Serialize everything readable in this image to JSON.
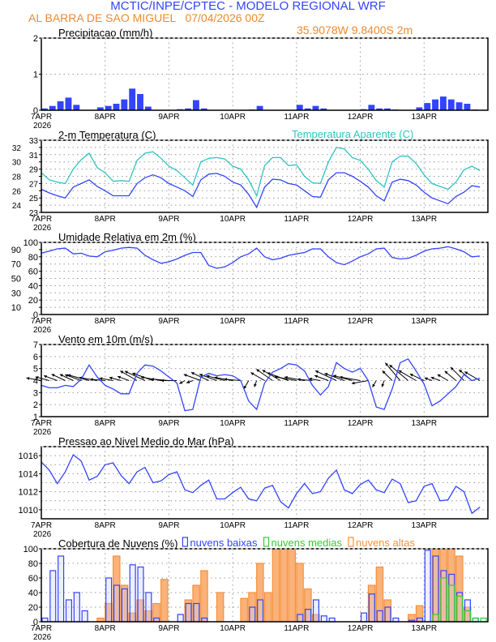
{
  "header": {
    "title": "MCTIC/INPE/CPTEC - MODELO REGIONAL WRF",
    "location": "AL BARRA DE SAO MIGUEL   07/04/2026 00Z",
    "coords": "35.9078W 9.8400S 2m"
  },
  "colors": {
    "title": "#3344ff",
    "subtitle": "#f0882e",
    "blue": "#3344ff",
    "cyan": "#2fc4c0",
    "orange": "#f7913a",
    "green": "#33cc33"
  },
  "chart_data": {
    "type": "meteogram",
    "x_tick_labels": [
      "7APR",
      "8APR",
      "9APR",
      "10APR",
      "11APR",
      "12APR",
      "13APR"
    ],
    "x_year_label": "2026",
    "times": [
      "07/00Z",
      "07/03Z",
      "07/06Z",
      "07/09Z",
      "07/12Z",
      "07/15Z",
      "07/18Z",
      "07/21Z",
      "08/00Z",
      "08/03Z",
      "08/06Z",
      "08/09Z",
      "08/12Z",
      "08/15Z",
      "08/18Z",
      "08/21Z",
      "09/00Z",
      "09/03Z",
      "09/06Z",
      "09/09Z",
      "09/12Z",
      "09/15Z",
      "09/18Z",
      "09/21Z",
      "10/00Z",
      "10/03Z",
      "10/06Z",
      "10/09Z",
      "10/12Z",
      "10/15Z",
      "10/18Z",
      "10/21Z",
      "11/00Z",
      "11/03Z",
      "11/06Z",
      "11/09Z",
      "11/12Z",
      "11/15Z",
      "11/18Z",
      "11/21Z",
      "12/00Z",
      "12/03Z",
      "12/06Z",
      "12/09Z",
      "12/12Z",
      "12/15Z",
      "12/18Z",
      "12/21Z",
      "13/00Z",
      "13/03Z",
      "13/06Z",
      "13/09Z",
      "13/12Z",
      "13/15Z",
      "13/18Z",
      "13/21Z"
    ],
    "grid": true,
    "panels": [
      {
        "id": "precip",
        "type": "bar",
        "title": "Precipitacao (mm/h)",
        "ylim": [
          0,
          2
        ],
        "yticks": [
          0,
          1,
          2
        ],
        "series": [
          {
            "color": "#3344ff",
            "values": [
              0.05,
              0.12,
              0.25,
              0.35,
              0.15,
              0,
              0,
              0.08,
              0.12,
              0.18,
              0.3,
              0.6,
              0.45,
              0.1,
              0,
              0,
              0,
              0.03,
              0.05,
              0.28,
              0.05,
              0,
              0,
              0,
              0,
              0,
              0.02,
              0.12,
              0.01,
              0,
              0,
              0,
              0.15,
              0.05,
              0.12,
              0.05,
              0,
              0,
              0,
              0,
              0.03,
              0.15,
              0.05,
              0.05,
              0.02,
              0,
              0.01,
              0.08,
              0.2,
              0.3,
              0.38,
              0.3,
              0.22,
              0.18,
              0.02,
              0
            ]
          }
        ]
      },
      {
        "id": "temp",
        "type": "line",
        "title": "2-m Temperatura (C)",
        "ylim": [
          23,
          33
        ],
        "yticks": [
          23,
          24,
          25,
          26,
          27,
          28,
          29,
          30,
          31,
          32,
          33
        ],
        "series": [
          {
            "name": "2-m Temperatura (C)",
            "color": "#3344ff",
            "values": [
              26.2,
              25.7,
              25.3,
              25.0,
              26.5,
              27.0,
              27.5,
              26.6,
              26.0,
              25.3,
              25.3,
              25.3,
              27.0,
              27.8,
              28.2,
              27.8,
              27.0,
              26.5,
              26.0,
              25.2,
              27.5,
              28.3,
              28.4,
              28.0,
              27.2,
              26.8,
              25.5,
              23.7,
              26.5,
              27.6,
              27.5,
              27.0,
              26.8,
              26.0,
              25.2,
              25.1,
              27.5,
              28.5,
              28.5,
              28.0,
              27.3,
              26.5,
              25.3,
              24.6,
              27.2,
              27.6,
              27.4,
              26.8,
              25.8,
              25.0,
              24.6,
              24.2,
              25.2,
              25.8,
              26.7,
              26.5
            ]
          },
          {
            "name": "Temperatura Aparente (C)",
            "color": "#2fc4c0",
            "values": [
              28.5,
              27.5,
              27.2,
              27.0,
              29.0,
              30.3,
              31.2,
              29.2,
              28.5,
              27.3,
              27.4,
              27.3,
              30.2,
              31.2,
              31.4,
              30.5,
              29.4,
              28.8,
              27.8,
              26.8,
              30.0,
              30.5,
              30.6,
              30.4,
              29.4,
              29.0,
              27.5,
              25.3,
              29.5,
              30.6,
              30.6,
              29.5,
              29.6,
              28.0,
              27.1,
              27.0,
              30.0,
              32.0,
              31.8,
              30.6,
              30.2,
              29.0,
              27.4,
              26.5,
              30.0,
              30.8,
              30.8,
              29.8,
              28.2,
              27.0,
              26.6,
              26.2,
              27.2,
              28.9,
              29.4,
              28.8
            ]
          }
        ]
      },
      {
        "id": "rh",
        "type": "line",
        "title": "Umidade Relativa em 2m (%)",
        "ylim": [
          0,
          100
        ],
        "yticks": [
          0,
          10,
          20,
          30,
          40,
          50,
          60,
          70,
          80,
          90,
          100
        ],
        "series": [
          {
            "color": "#3344ff",
            "values": [
              85,
              88,
              91,
              92,
              84,
              85,
              81,
              80,
              87,
              89,
              92,
              93,
              92,
              82,
              76,
              71,
              73,
              77,
              82,
              86,
              86,
              68,
              64,
              66,
              72,
              80,
              84,
              92,
              80,
              76,
              78,
              82,
              84,
              86,
              91,
              91,
              80,
              72,
              69,
              74,
              80,
              84,
              91,
              92,
              79,
              77,
              78,
              82,
              88,
              91,
              92,
              94,
              91,
              87,
              80,
              81
            ]
          }
        ]
      },
      {
        "id": "wind",
        "type": "line+vector",
        "title": "Vento em 10m (m/s)",
        "ylim": [
          1,
          7
        ],
        "yticks": [
          1,
          2,
          3,
          4,
          5,
          6,
          7
        ],
        "series": [
          {
            "color": "#3344ff",
            "values": [
              3.6,
              3.4,
              3.4,
              3.6,
              3.5,
              4.1,
              5.3,
              4.3,
              3.6,
              3.3,
              2.9,
              2.9,
              4.6,
              5.3,
              5.2,
              4.8,
              4.3,
              3.8,
              1.5,
              1.6,
              4.3,
              4.6,
              4.4,
              4.5,
              4.4,
              4.0,
              2.3,
              1.6,
              3.8,
              4.7,
              5.0,
              5.4,
              5.3,
              4.8,
              3.6,
              2.8,
              3.5,
              5.5,
              5.0,
              4.7,
              5.0,
              4.0,
              1.8,
              1.6,
              3.3,
              5.5,
              5.8,
              4.8,
              3.7,
              1.9,
              2.3,
              2.9,
              3.5,
              4.5,
              4.0,
              4.2
            ]
          }
        ],
        "wind_direction_deg": [
          100,
          105,
          110,
          115,
          115,
          110,
          105,
          100,
          95,
          100,
          105,
          110,
          120,
          115,
          110,
          100,
          95,
          90,
          60,
          70,
          110,
          115,
          110,
          105,
          100,
          95,
          30,
          20,
          120,
          125,
          120,
          110,
          100,
          100,
          95,
          100,
          110,
          115,
          110,
          105,
          100,
          80,
          30,
          20,
          135,
          140,
          130,
          120,
          115,
          110,
          110,
          120,
          130,
          135,
          130,
          120
        ]
      },
      {
        "id": "pressure",
        "type": "line",
        "title": "Pressao ao Nivel Medio do Mar (hPa)",
        "ylim": [
          1009,
          1017
        ],
        "yticks": [
          1010,
          1011,
          1012,
          1013,
          1014,
          1015,
          1016
        ],
        "ytick_labels": [
          1010,
          1012,
          1014,
          1016
        ],
        "series": [
          {
            "color": "#3344ff",
            "values": [
              1015.3,
              1014.4,
              1012.9,
              1014.2,
              1016.1,
              1015.4,
              1013.3,
              1013.7,
              1015.0,
              1015.2,
              1013.8,
              1012.9,
              1014.2,
              1014.7,
              1013.0,
              1013.2,
              1013.9,
              1014.2,
              1012.2,
              1011.9,
              1012.7,
              1013.3,
              1011.2,
              1011.2,
              1011.9,
              1012.5,
              1011.2,
              1011.0,
              1012.4,
              1012.7,
              1010.9,
              1010.2,
              1011.8,
              1012.9,
              1011.8,
              1012.0,
              1013.5,
              1014.4,
              1012.2,
              1011.8,
              1012.8,
              1013.3,
              1012.2,
              1011.9,
              1013.4,
              1012.9,
              1010.8,
              1011.0,
              1012.6,
              1012.9,
              1011.0,
              1011.1,
              1012.6,
              1012.0,
              1009.6,
              1010.3
            ]
          }
        ]
      },
      {
        "id": "clouds",
        "type": "bar",
        "title": "Cobertura de Nuvens (%)",
        "ylim": [
          0,
          100
        ],
        "yticks": [
          0,
          20,
          40,
          60,
          80,
          100
        ],
        "series": [
          {
            "name": "nuvens altas",
            "color": "#f7913a",
            "values": [
              0,
              0,
              0,
              0,
              0,
              0,
              0,
              5,
              25,
              90,
              50,
              12,
              30,
              15,
              25,
              58,
              0,
              0,
              30,
              50,
              70,
              0,
              40,
              0,
              0,
              32,
              40,
              80,
              40,
              100,
              100,
              100,
              80,
              45,
              10,
              0,
              0,
              0,
              0,
              0,
              0,
              50,
              75,
              30,
              0,
              0,
              10,
              22,
              0,
              100,
              100,
              100,
              90,
              20,
              0,
              0
            ]
          },
          {
            "name": "nuvens baixas",
            "color": "#3344ff",
            "values": [
              5,
              70,
              90,
              30,
              40,
              15,
              0,
              0,
              60,
              50,
              45,
              78,
              75,
              40,
              5,
              0,
              0,
              10,
              25,
              25,
              5,
              0,
              0,
              0,
              0,
              0,
              20,
              30,
              0,
              0,
              0,
              0,
              10,
              17,
              30,
              8,
              5,
              0,
              0,
              0,
              12,
              38,
              15,
              20,
              5,
              0,
              2,
              5,
              98,
              90,
              70,
              65,
              40,
              30,
              5,
              0
            ]
          },
          {
            "name": "nuvens medias",
            "color": "#33cc33",
            "values": [
              0,
              0,
              0,
              0,
              0,
              0,
              0,
              0,
              0,
              0,
              0,
              0,
              0,
              0,
              0,
              0,
              0,
              0,
              0,
              0,
              0,
              0,
              0,
              0,
              0,
              0,
              0,
              0,
              0,
              0,
              0,
              0,
              0,
              0,
              0,
              0,
              0,
              0,
              0,
              0,
              0,
              0,
              0,
              0,
              0,
              0,
              0,
              0,
              0,
              10,
              60,
              50,
              35,
              15,
              5,
              5
            ]
          }
        ],
        "legend": [
          "nuvens baixas",
          "nuvens medias",
          "nuvens altas"
        ],
        "legend_placement": "top"
      }
    ]
  }
}
